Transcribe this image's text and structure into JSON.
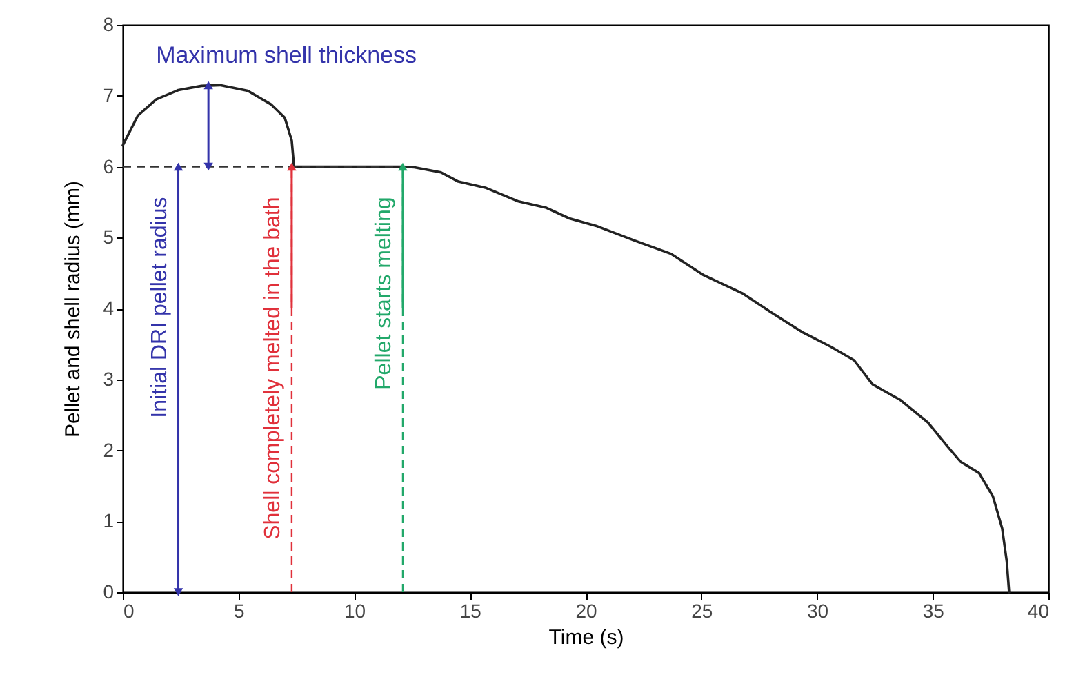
{
  "chart_data": {
    "type": "line",
    "xlabel": "Time (s)",
    "ylabel": "Pellet and shell radius (mm)",
    "x": [
      0,
      0.65,
      1.45,
      2.4,
      3.4,
      4.2,
      5.4,
      6.4,
      7.0,
      7.3,
      7.4,
      12.1,
      12.6,
      13.75,
      14.5,
      15.7,
      17.1,
      18.3,
      19.3,
      20.5,
      22.1,
      23.7,
      25.1,
      26.8,
      28.0,
      29.4,
      30.6,
      31.6,
      32.4,
      33.6,
      34.8,
      35.6,
      36.2,
      37.0,
      37.6,
      38.0,
      38.2,
      38.3
    ],
    "series": [
      {
        "color": "#222222",
        "values": [
          6.3,
          6.72,
          6.95,
          7.08,
          7.14,
          7.15,
          7.07,
          6.88,
          6.69,
          6.37,
          6.0,
          6.0,
          5.99,
          5.92,
          5.79,
          5.7,
          5.51,
          5.42,
          5.27,
          5.16,
          4.96,
          4.77,
          4.47,
          4.21,
          3.95,
          3.66,
          3.46,
          3.27,
          2.93,
          2.71,
          2.39,
          2.07,
          1.84,
          1.68,
          1.35,
          0.9,
          0.43,
          0
        ]
      }
    ],
    "xlim": [
      0,
      40
    ],
    "xticks": [
      0,
      5,
      10,
      15,
      20,
      25,
      30,
      35,
      40
    ],
    "ylim": [
      0,
      8
    ],
    "yticks": [
      0,
      1,
      2,
      3,
      4,
      5,
      6,
      7,
      8
    ],
    "ref_lines": [
      {
        "axis": "y",
        "value": 6,
        "line_style": "dashed",
        "color": "#333333"
      },
      {
        "axis": "x",
        "value": 7.3,
        "line_style": "dashed",
        "color": "#e0303a"
      },
      {
        "axis": "x",
        "value": 12.1,
        "line_style": "dashed",
        "color": "#22a86a"
      }
    ],
    "annotations": [
      {
        "text": "Maximum shell thickness",
        "x": 3.7,
        "y": 7.15
      },
      {
        "text": "Initial DRI pellet radius",
        "x": 2.4,
        "y": 6
      },
      {
        "text": "Shell completely melted in the bath",
        "x": 7.3,
        "y": 6
      },
      {
        "text": "Pellet starts melting",
        "x": 12.1,
        "y": 6
      }
    ],
    "grid": false,
    "marker": "none",
    "line_style": "solid"
  }
}
